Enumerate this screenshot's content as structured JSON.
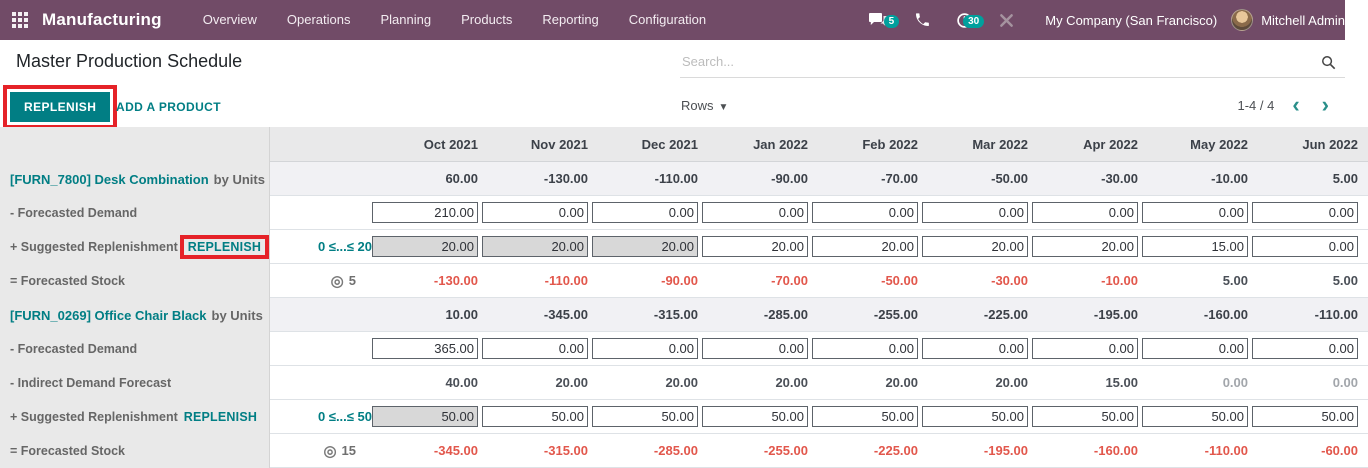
{
  "navbar": {
    "brand": "Manufacturing",
    "menu": [
      "Overview",
      "Operations",
      "Planning",
      "Products",
      "Reporting",
      "Configuration"
    ],
    "messages_badge": "5",
    "activities_badge": "30",
    "company": "My Company (San Francisco)",
    "user": "Mitchell Admin"
  },
  "page": {
    "title": "Master Production Schedule",
    "replenish_button": "REPLENISH",
    "add_product": "ADD A PRODUCT",
    "rows_dropdown": "Rows",
    "pager": "1-4 / 4",
    "search_placeholder": "Search..."
  },
  "colors": {
    "topbar": "#714B67",
    "accent_teal": "#017e84",
    "negative_red": "#e2574c",
    "annotation_red": "#e52228",
    "badge_teal": "#00a09d"
  },
  "table": {
    "months": [
      "Oct 2021",
      "Nov 2021",
      "Dec 2021",
      "Jan 2022",
      "Feb 2022",
      "Mar 2022",
      "Apr 2022",
      "May 2022",
      "Jun 2022"
    ],
    "products": [
      {
        "name": "[FURN_7800] Desk Combination",
        "uom": "by Units",
        "summary": [
          "60.00",
          "-130.00",
          "-110.00",
          "-90.00",
          "-70.00",
          "-50.00",
          "-30.00",
          "-10.00",
          "5.00"
        ],
        "rows": [
          {
            "kind": "demand",
            "label": "- Forecasted Demand",
            "inputs": [
              "210.00",
              "0.00",
              "0.00",
              "0.00",
              "0.00",
              "0.00",
              "0.00",
              "0.00",
              "0.00"
            ],
            "gray_inputs": []
          },
          {
            "kind": "replenish",
            "label": "+ Suggested Replenishment",
            "link": "REPLENISH",
            "annotated": true,
            "range": "0 ≤...≤ 20",
            "inputs": [
              "20.00",
              "20.00",
              "20.00",
              "20.00",
              "20.00",
              "20.00",
              "20.00",
              "15.00",
              "0.00"
            ],
            "gray_inputs": [
              0,
              1,
              2
            ]
          },
          {
            "kind": "stock",
            "label": "= Forecasted Stock",
            "target": "5",
            "values": [
              "-130.00",
              "-110.00",
              "-90.00",
              "-70.00",
              "-50.00",
              "-30.00",
              "-10.00",
              "5.00",
              "5.00"
            ]
          }
        ]
      },
      {
        "name": "[FURN_0269] Office Chair Black",
        "uom": "by Units",
        "summary": [
          "10.00",
          "-345.00",
          "-315.00",
          "-285.00",
          "-255.00",
          "-225.00",
          "-195.00",
          "-160.00",
          "-110.00"
        ],
        "rows": [
          {
            "kind": "demand",
            "label": "- Forecasted Demand",
            "inputs": [
              "365.00",
              "0.00",
              "0.00",
              "0.00",
              "0.00",
              "0.00",
              "0.00",
              "0.00",
              "0.00"
            ],
            "gray_inputs": []
          },
          {
            "kind": "indirect",
            "label": "- Indirect Demand Forecast",
            "values": [
              "40.00",
              "20.00",
              "20.00",
              "20.00",
              "20.00",
              "20.00",
              "15.00",
              "0.00",
              "0.00"
            ],
            "muted": [
              7,
              8
            ]
          },
          {
            "kind": "replenish",
            "label": "+ Suggested Replenishment",
            "link": "REPLENISH",
            "annotated": false,
            "range": "0 ≤...≤ 50",
            "inputs": [
              "50.00",
              "50.00",
              "50.00",
              "50.00",
              "50.00",
              "50.00",
              "50.00",
              "50.00",
              "50.00"
            ],
            "gray_inputs": [
              0
            ]
          },
          {
            "kind": "stock",
            "label": "= Forecasted Stock",
            "target": "15",
            "values": [
              "-345.00",
              "-315.00",
              "-285.00",
              "-255.00",
              "-225.00",
              "-195.00",
              "-160.00",
              "-110.00",
              "-60.00"
            ]
          }
        ]
      }
    ]
  }
}
